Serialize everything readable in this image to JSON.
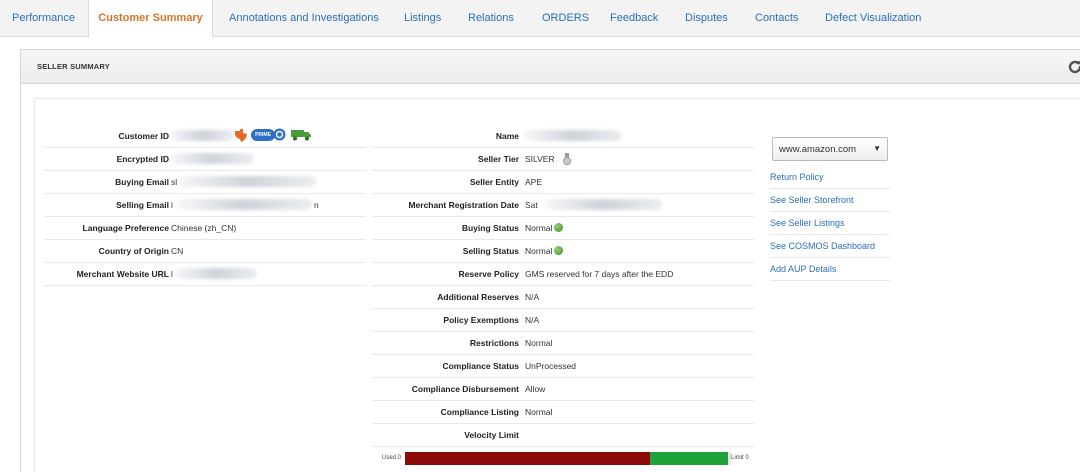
{
  "tabs": [
    {
      "label": "Performance",
      "active": false
    },
    {
      "label": "Customer Summary",
      "active": true
    },
    {
      "label": "Annotations and Investigations",
      "active": false
    },
    {
      "label": "Listings",
      "active": false
    },
    {
      "label": "Relations",
      "active": false
    },
    {
      "label": "ORDERS",
      "active": false
    },
    {
      "label": "Feedback",
      "active": false
    },
    {
      "label": "Disputes",
      "active": false
    },
    {
      "label": "Contacts",
      "active": false
    },
    {
      "label": "Defect Visualization",
      "active": false
    }
  ],
  "panel": {
    "title": "SELLER SUMMARY",
    "refresh_icon": "refresh-icon"
  },
  "customer": {
    "customer_id_label": "Customer ID",
    "customer_id_badge": "PRIME",
    "encrypted_id_label": "Encrypted ID",
    "buying_email_label": "Buying Email",
    "buying_email_value": "sl",
    "selling_email_label": "Selling Email",
    "selling_email_value": "l",
    "selling_email_suffix": "n",
    "language_label": "Language Preference",
    "language_value": "Chinese (zh_CN)",
    "country_label": "Country of Origin",
    "country_value": "CN",
    "website_label": "Merchant Website URL",
    "website_value": "l"
  },
  "seller": {
    "name_label": "Name",
    "tier_label": "Seller Tier",
    "tier_value": "SILVER",
    "entity_label": "Seller Entity",
    "entity_value": "APE",
    "reg_date_label": "Merchant Registration Date",
    "reg_date_value": "Sat",
    "buying_status_label": "Buying Status",
    "buying_status_value": "Normal",
    "selling_status_label": "Selling Status",
    "selling_status_value": "Normal",
    "reserve_policy_label": "Reserve Policy",
    "reserve_policy_value": "GMS reserved for 7 days after the EDD",
    "additional_reserves_label": "Additional Reserves",
    "additional_reserves_value": "N/A",
    "policy_exemptions_label": "Policy Exemptions",
    "policy_exemptions_value": "N/A",
    "restrictions_label": "Restrictions",
    "restrictions_value": "Normal",
    "compliance_status_label": "Compliance Status",
    "compliance_status_value": "UnProcessed",
    "compliance_disbursement_label": "Compliance Disbursement",
    "compliance_disbursement_value": "Allow",
    "compliance_listing_label": "Compliance Listing",
    "compliance_listing_value": "Normal",
    "velocity_label": "Velocity Limit"
  },
  "velocity": {
    "used_label": "Used 0",
    "limit_label": "Limit 0",
    "red_fraction": 0.75,
    "green_fraction": 0.24,
    "red_color": "#8c0a08",
    "green_color": "#1fa23a"
  },
  "links": {
    "marketplace_select": "www.amazon.com",
    "items": [
      "Return Policy",
      "See Seller Storefront",
      "See Seller Listings",
      "See COSMOS Dashboard",
      "Add AUP Details"
    ]
  }
}
